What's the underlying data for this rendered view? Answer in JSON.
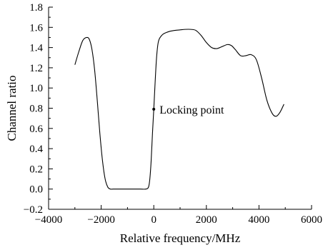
{
  "chart_data": {
    "type": "line",
    "title": "",
    "xlabel": "Relative frequency/MHz",
    "ylabel": "Channel ratio",
    "xlim": [
      -4000,
      6000
    ],
    "ylim": [
      -0.2,
      1.8
    ],
    "x_ticks": [
      -4000,
      -2000,
      0,
      2000,
      4000,
      6000
    ],
    "x_tick_labels": [
      "−4000",
      "−2000",
      "0",
      "2000",
      "4000",
      "6000"
    ],
    "y_ticks": [
      -0.2,
      0.0,
      0.2,
      0.4,
      0.6,
      0.8,
      1.0,
      1.2,
      1.4,
      1.6,
      1.8
    ],
    "y_tick_labels": [
      "−0.2",
      "0.0",
      "0.2",
      "0.4",
      "0.6",
      "0.8",
      "1.0",
      "1.2",
      "1.4",
      "1.6",
      "1.8"
    ],
    "grid": false,
    "legend": "none",
    "line_color": "#000000",
    "series": [
      {
        "x": [
          -3000,
          -2850,
          -2700,
          -2550,
          -2450,
          -2350,
          -2250,
          -2150,
          -2050,
          -1950,
          -1850,
          -1750,
          -1650,
          -1550,
          -1450,
          -1300,
          -1100,
          -900,
          -700,
          -500,
          -300,
          -200,
          -150,
          -100,
          -50,
          0,
          50,
          100,
          150,
          200,
          300,
          400,
          600,
          800,
          1000,
          1200,
          1400,
          1600,
          1800,
          2000,
          2200,
          2400,
          2600,
          2800,
          2950,
          3100,
          3300,
          3500,
          3700,
          3900,
          4100,
          4300,
          4500,
          4650,
          4800,
          4950
        ],
        "y": [
          1.23,
          1.36,
          1.47,
          1.5,
          1.48,
          1.38,
          1.18,
          0.88,
          0.55,
          0.28,
          0.1,
          0.02,
          0.0,
          0.0,
          0.0,
          0.0,
          0.0,
          0.0,
          0.0,
          0.0,
          0.0,
          0.02,
          0.1,
          0.28,
          0.55,
          0.79,
          1.05,
          1.28,
          1.42,
          1.48,
          1.52,
          1.54,
          1.56,
          1.57,
          1.575,
          1.58,
          1.58,
          1.57,
          1.52,
          1.45,
          1.4,
          1.39,
          1.41,
          1.43,
          1.42,
          1.38,
          1.32,
          1.32,
          1.33,
          1.28,
          1.1,
          0.88,
          0.75,
          0.72,
          0.76,
          0.84
        ]
      }
    ],
    "annotations": [
      {
        "text": "Locking point",
        "x": 0,
        "y": 0.79
      }
    ]
  }
}
